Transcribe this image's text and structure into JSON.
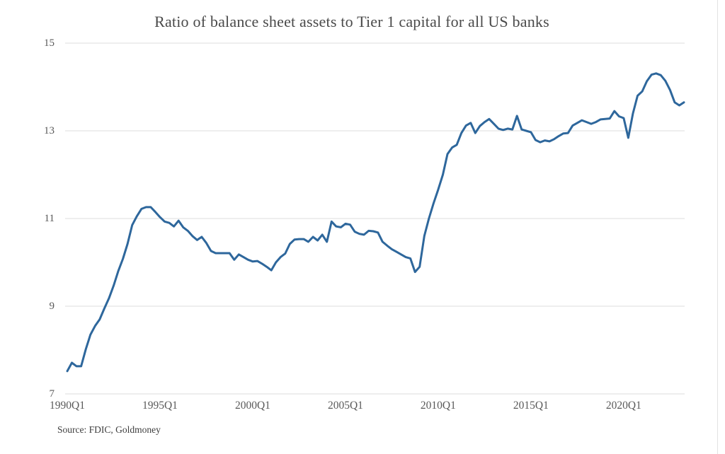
{
  "chart": {
    "source_note": "Source: FDIC, Goldmoney",
    "colors": {
      "line": "#2e679c",
      "gridline": "#dcdcdc",
      "axis_text": "#595959",
      "title_text": "#4a4a4a",
      "background": "#ffffff"
    }
  },
  "chart_data": {
    "type": "line",
    "title": "Ratio of balance sheet assets to Tier 1 capital for all US banks",
    "xlabel": "",
    "ylabel": "",
    "ylim": [
      7,
      15
    ],
    "y_ticks": [
      7,
      9,
      11,
      13,
      15
    ],
    "grid": "horizontal",
    "legend": "none",
    "x_range": {
      "start": "1990Q1",
      "end": "2023Q2",
      "frequency": "quarterly",
      "points": 134
    },
    "x_tick_labels": [
      "1990Q1",
      "1995Q1",
      "2000Q1",
      "2005Q1",
      "2010Q1",
      "2015Q1",
      "2020Q1"
    ],
    "x_tick_indices": [
      0,
      20,
      40,
      60,
      80,
      100,
      120
    ],
    "values": [
      7.52,
      7.71,
      7.63,
      7.63,
      8.02,
      8.35,
      8.55,
      8.7,
      8.95,
      9.18,
      9.47,
      9.8,
      10.08,
      10.42,
      10.85,
      11.05,
      11.22,
      11.26,
      11.26,
      11.15,
      11.03,
      10.93,
      10.9,
      10.82,
      10.95,
      10.8,
      10.72,
      10.6,
      10.51,
      10.58,
      10.44,
      10.26,
      10.21,
      10.21,
      10.21,
      10.21,
      10.06,
      10.18,
      10.12,
      10.06,
      10.02,
      10.03,
      9.97,
      9.9,
      9.82,
      10.0,
      10.12,
      10.2,
      10.42,
      10.52,
      10.53,
      10.53,
      10.47,
      10.58,
      10.5,
      10.63,
      10.47,
      10.93,
      10.82,
      10.8,
      10.88,
      10.86,
      10.7,
      10.65,
      10.63,
      10.72,
      10.71,
      10.68,
      10.47,
      10.38,
      10.3,
      10.24,
      10.18,
      10.12,
      10.09,
      9.78,
      9.9,
      10.6,
      11.0,
      11.35,
      11.66,
      12.0,
      12.47,
      12.62,
      12.68,
      12.95,
      13.12,
      13.18,
      12.95,
      13.11,
      13.2,
      13.27,
      13.16,
      13.05,
      13.02,
      13.05,
      13.03,
      13.34,
      13.03,
      13.0,
      12.97,
      12.79,
      12.74,
      12.78,
      12.76,
      12.81,
      12.88,
      12.94,
      12.95,
      13.12,
      13.18,
      13.24,
      13.2,
      13.16,
      13.2,
      13.26,
      13.27,
      13.28,
      13.45,
      13.33,
      13.29,
      12.84,
      13.4,
      13.8,
      13.9,
      14.13,
      14.28,
      14.31,
      14.27,
      14.14,
      13.93,
      13.65,
      13.58,
      13.65
    ]
  }
}
